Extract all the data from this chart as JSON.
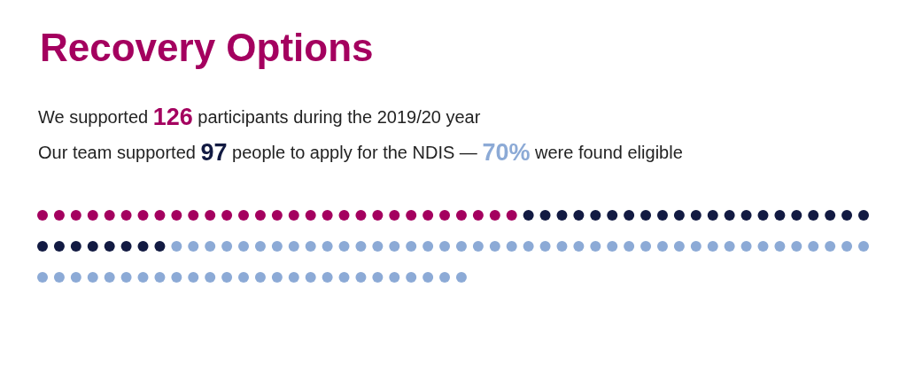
{
  "chart_data": {
    "type": "other",
    "title": "Recovery Options",
    "annotations": [
      "We supported",
      "participants during the 2019/20 year",
      "Our team supported",
      "people to apply for the NDIS —",
      "were found eligible"
    ],
    "values": [
      126,
      97,
      70
    ],
    "value_labels": [
      "126",
      "97",
      "70%"
    ],
    "colors": [
      "#a4005f",
      "#121a42",
      "#8caad6"
    ]
  }
}
